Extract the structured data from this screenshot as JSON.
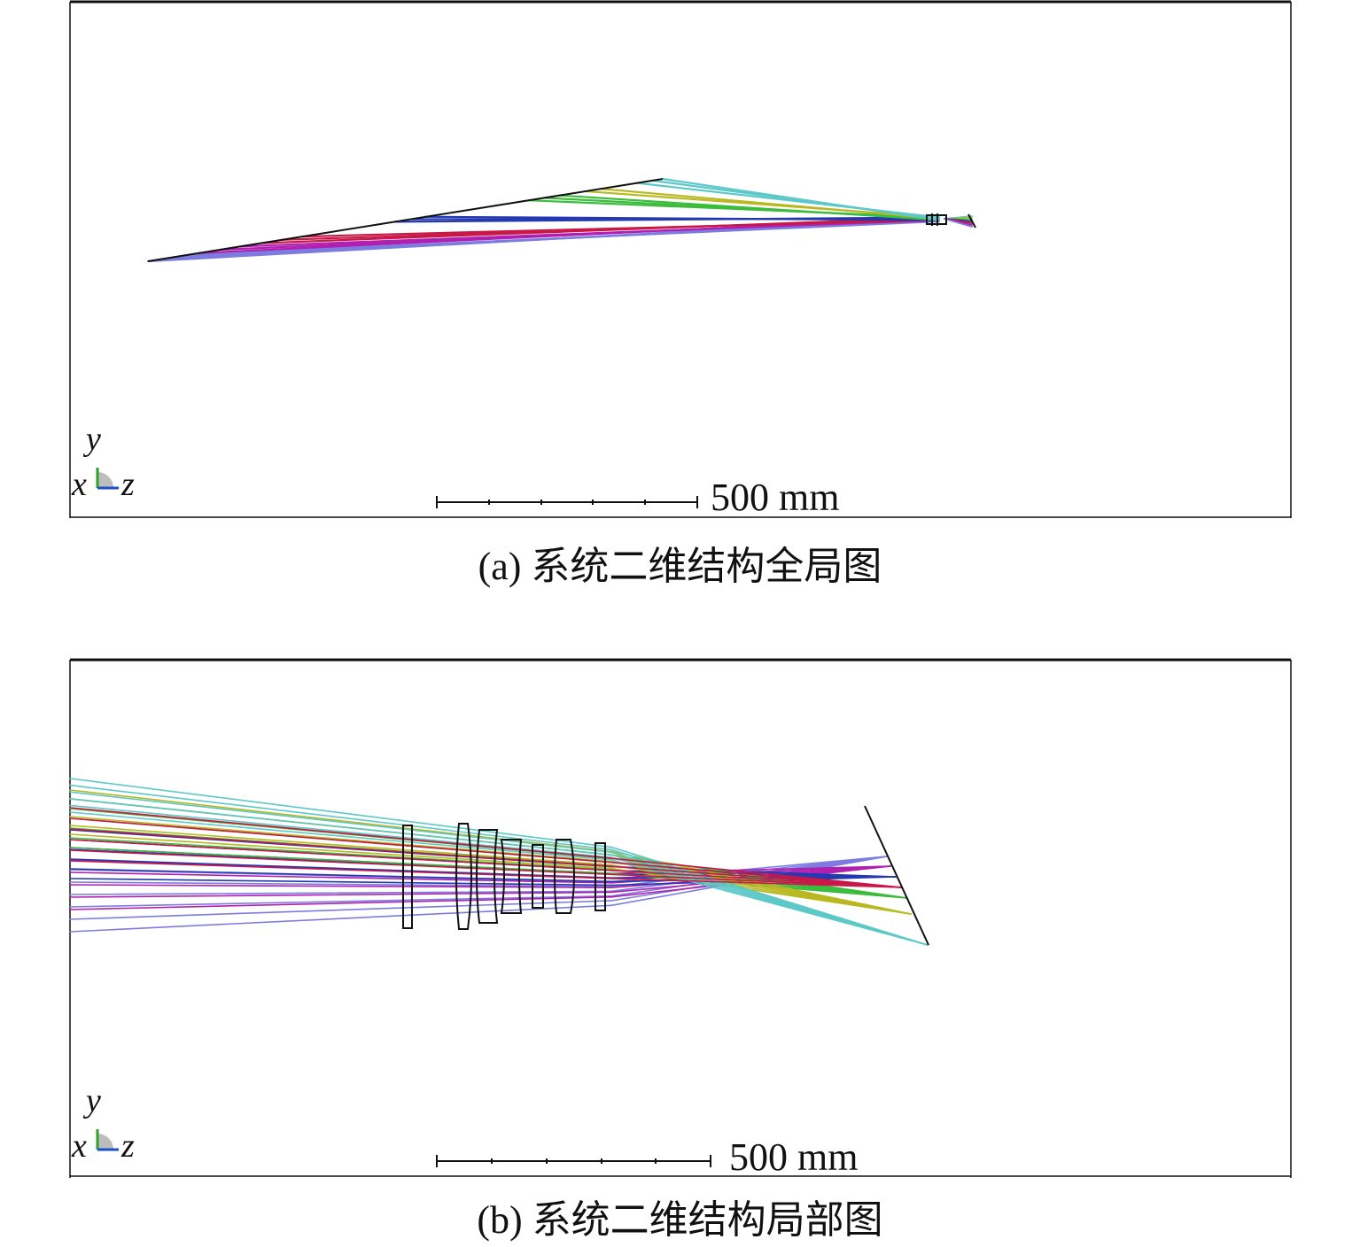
{
  "panel_a": {
    "caption": "(a) 系统二维结构全局图",
    "scale_label": "500 mm",
    "axes": {
      "vertical": "y",
      "left": "x",
      "right": "z"
    }
  },
  "panel_b": {
    "caption": "(b) 系统二维结构局部图",
    "scale_label": "500 mm",
    "axes": {
      "vertical": "y",
      "left": "x",
      "right": "z"
    }
  },
  "field_colors": [
    "#5cc8c8",
    "#b8b820",
    "#3cbc3c",
    "#2438b0",
    "#c81848",
    "#b020b0",
    "#7c7ce0"
  ]
}
